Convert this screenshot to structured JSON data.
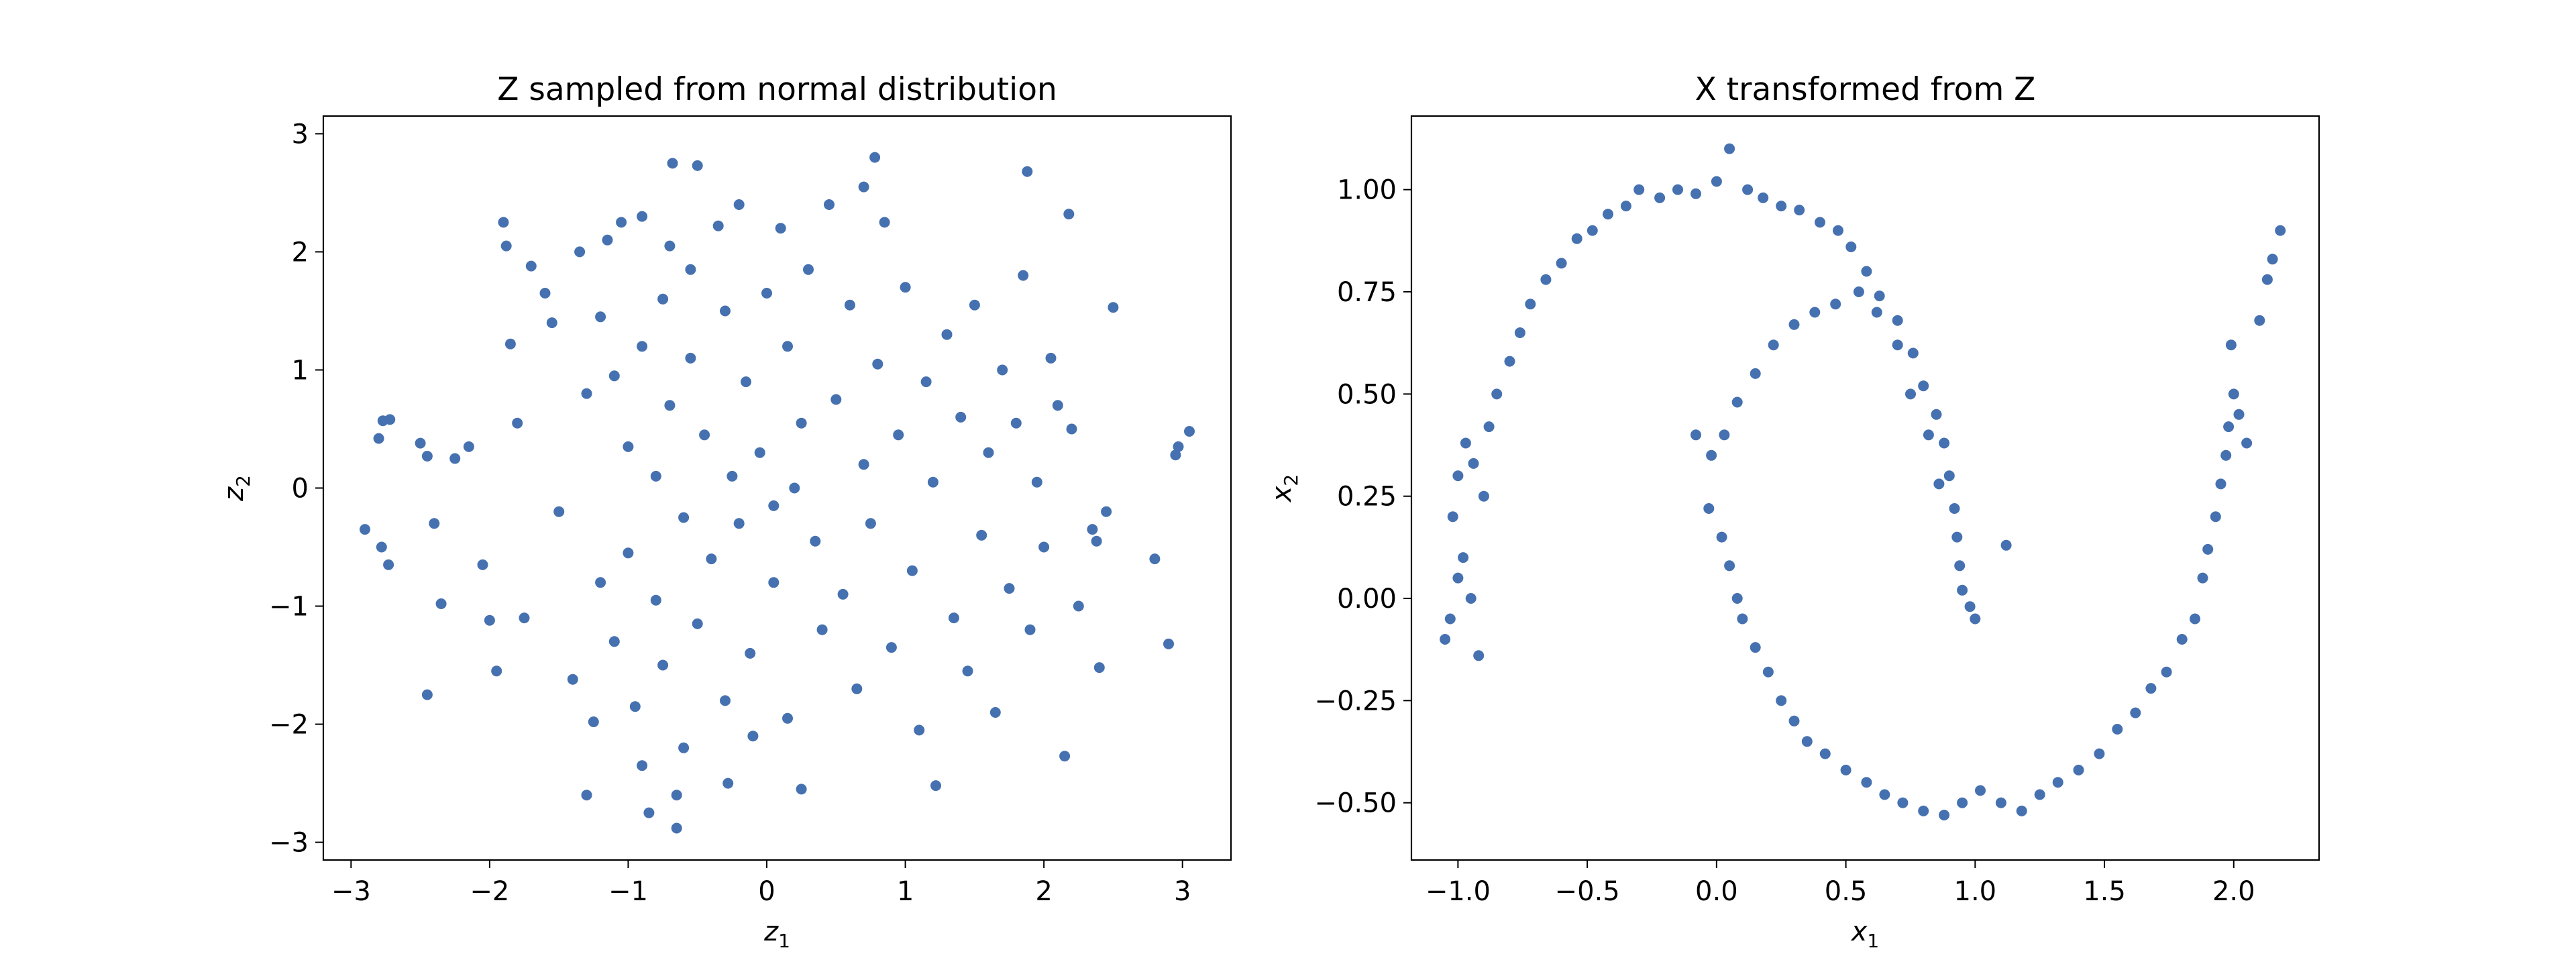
{
  "chart_data": [
    {
      "type": "scatter",
      "title": "Z sampled from normal distribution",
      "xlabel": "z",
      "xlabel_sub": "1",
      "ylabel": "z",
      "ylabel_sub": "2",
      "xlim": [
        -3.2,
        3.35
      ],
      "ylim": [
        -3.15,
        3.15
      ],
      "xticks": [
        {
          "value": -3,
          "label": "−3"
        },
        {
          "value": -2,
          "label": "−2"
        },
        {
          "value": -1,
          "label": "−1"
        },
        {
          "value": 0,
          "label": "0"
        },
        {
          "value": 1,
          "label": "1"
        },
        {
          "value": 2,
          "label": "2"
        },
        {
          "value": 3,
          "label": "3"
        }
      ],
      "yticks": [
        {
          "value": -3,
          "label": "−3"
        },
        {
          "value": -2,
          "label": "−2"
        },
        {
          "value": -1,
          "label": "−1"
        },
        {
          "value": 0,
          "label": "0"
        },
        {
          "value": 1,
          "label": "1"
        },
        {
          "value": 2,
          "label": "2"
        },
        {
          "value": 3,
          "label": "3"
        }
      ],
      "grid": false,
      "color": "#4671b0",
      "points": [
        [
          -2.9,
          -0.35
        ],
        [
          -2.8,
          0.42
        ],
        [
          -2.77,
          0.57
        ],
        [
          -2.72,
          0.58
        ],
        [
          -2.78,
          -0.5
        ],
        [
          -2.73,
          -0.65
        ],
        [
          -2.5,
          0.38
        ],
        [
          -2.45,
          0.27
        ],
        [
          -2.4,
          -0.3
        ],
        [
          -2.35,
          -0.98
        ],
        [
          -2.45,
          -1.75
        ],
        [
          -2.25,
          0.25
        ],
        [
          -2.15,
          0.35
        ],
        [
          -2.05,
          -0.65
        ],
        [
          -2.0,
          -1.12
        ],
        [
          -1.95,
          -1.55
        ],
        [
          -1.9,
          2.25
        ],
        [
          -1.88,
          2.05
        ],
        [
          -1.85,
          1.22
        ],
        [
          -1.8,
          0.55
        ],
        [
          -1.75,
          -1.1
        ],
        [
          -1.7,
          1.88
        ],
        [
          -1.6,
          1.65
        ],
        [
          -1.55,
          1.4
        ],
        [
          -1.5,
          -0.2
        ],
        [
          -1.4,
          -1.62
        ],
        [
          -1.35,
          2.0
        ],
        [
          -1.3,
          0.8
        ],
        [
          -1.3,
          -2.6
        ],
        [
          -1.25,
          -1.98
        ],
        [
          -1.2,
          1.45
        ],
        [
          -1.2,
          -0.8
        ],
        [
          -1.15,
          2.1
        ],
        [
          -1.1,
          0.95
        ],
        [
          -1.1,
          -1.3
        ],
        [
          -1.05,
          2.25
        ],
        [
          -1.0,
          0.35
        ],
        [
          -1.0,
          -0.55
        ],
        [
          -0.95,
          -1.85
        ],
        [
          -0.9,
          2.3
        ],
        [
          -0.9,
          1.2
        ],
        [
          -0.9,
          -2.35
        ],
        [
          -0.85,
          -2.75
        ],
        [
          -0.8,
          0.1
        ],
        [
          -0.8,
          -0.95
        ],
        [
          -0.75,
          1.6
        ],
        [
          -0.75,
          -1.5
        ],
        [
          -0.7,
          2.05
        ],
        [
          -0.7,
          0.7
        ],
        [
          -0.68,
          2.75
        ],
        [
          -0.65,
          -2.6
        ],
        [
          -0.65,
          -2.88
        ],
        [
          -0.6,
          -0.25
        ],
        [
          -0.6,
          -2.2
        ],
        [
          -0.55,
          1.85
        ],
        [
          -0.55,
          1.1
        ],
        [
          -0.5,
          -1.15
        ],
        [
          -0.5,
          2.73
        ],
        [
          -0.45,
          0.45
        ],
        [
          -0.4,
          -0.6
        ],
        [
          -0.35,
          2.22
        ],
        [
          -0.3,
          1.5
        ],
        [
          -0.3,
          -1.8
        ],
        [
          -0.28,
          -2.5
        ],
        [
          -0.25,
          0.1
        ],
        [
          -0.2,
          -0.3
        ],
        [
          -0.2,
          2.4
        ],
        [
          -0.15,
          0.9
        ],
        [
          -0.12,
          -1.4
        ],
        [
          -0.1,
          -2.1
        ],
        [
          -0.05,
          0.3
        ],
        [
          0.0,
          1.65
        ],
        [
          0.05,
          -0.15
        ],
        [
          0.05,
          -0.8
        ],
        [
          0.1,
          2.2
        ],
        [
          0.15,
          1.2
        ],
        [
          0.15,
          -1.95
        ],
        [
          0.2,
          0.0
        ],
        [
          0.25,
          0.55
        ],
        [
          0.25,
          -2.55
        ],
        [
          0.3,
          1.85
        ],
        [
          0.35,
          -0.45
        ],
        [
          0.4,
          -1.2
        ],
        [
          0.45,
          2.4
        ],
        [
          0.5,
          0.75
        ],
        [
          0.55,
          -0.9
        ],
        [
          0.6,
          1.55
        ],
        [
          0.65,
          -1.7
        ],
        [
          0.7,
          0.2
        ],
        [
          0.7,
          2.55
        ],
        [
          0.75,
          -0.3
        ],
        [
          0.78,
          2.8
        ],
        [
          0.8,
          1.05
        ],
        [
          0.85,
          2.25
        ],
        [
          0.9,
          -1.35
        ],
        [
          0.95,
          0.45
        ],
        [
          1.0,
          1.7
        ],
        [
          1.05,
          -0.7
        ],
        [
          1.1,
          -2.05
        ],
        [
          1.15,
          0.9
        ],
        [
          1.2,
          0.05
        ],
        [
          1.22,
          -2.52
        ],
        [
          1.3,
          1.3
        ],
        [
          1.35,
          -1.1
        ],
        [
          1.4,
          0.6
        ],
        [
          1.45,
          -1.55
        ],
        [
          1.5,
          1.55
        ],
        [
          1.55,
          -0.4
        ],
        [
          1.6,
          0.3
        ],
        [
          1.65,
          -1.9
        ],
        [
          1.7,
          1.0
        ],
        [
          1.75,
          -0.85
        ],
        [
          1.8,
          0.55
        ],
        [
          1.85,
          1.8
        ],
        [
          1.88,
          2.68
        ],
        [
          1.9,
          -1.2
        ],
        [
          1.95,
          0.05
        ],
        [
          2.0,
          -0.5
        ],
        [
          2.05,
          1.1
        ],
        [
          2.1,
          0.7
        ],
        [
          2.15,
          -2.27
        ],
        [
          2.18,
          2.32
        ],
        [
          2.2,
          0.5
        ],
        [
          2.25,
          -1.0
        ],
        [
          2.35,
          -0.35
        ],
        [
          2.38,
          -0.45
        ],
        [
          2.45,
          -0.2
        ],
        [
          2.5,
          1.53
        ],
        [
          2.4,
          -1.52
        ],
        [
          2.8,
          -0.6
        ],
        [
          2.9,
          -1.32
        ],
        [
          2.95,
          0.28
        ],
        [
          2.97,
          0.35
        ],
        [
          3.05,
          0.48
        ]
      ]
    },
    {
      "type": "scatter",
      "title": "X transformed from Z",
      "xlabel": "x",
      "xlabel_sub": "1",
      "ylabel": "x",
      "ylabel_sub": "2",
      "xlim": [
        -1.18,
        2.33
      ],
      "ylim": [
        -0.64,
        1.18
      ],
      "xticks": [
        {
          "value": -1.0,
          "label": "−1.0"
        },
        {
          "value": -0.5,
          "label": "−0.5"
        },
        {
          "value": 0.0,
          "label": "0.0"
        },
        {
          "value": 0.5,
          "label": "0.5"
        },
        {
          "value": 1.0,
          "label": "1.0"
        },
        {
          "value": 1.5,
          "label": "1.5"
        },
        {
          "value": 2.0,
          "label": "2.0"
        }
      ],
      "yticks": [
        {
          "value": -0.5,
          "label": "−0.50"
        },
        {
          "value": -0.25,
          "label": "−0.25"
        },
        {
          "value": 0.0,
          "label": "0.00"
        },
        {
          "value": 0.25,
          "label": "0.25"
        },
        {
          "value": 0.5,
          "label": "0.50"
        },
        {
          "value": 0.75,
          "label": "0.75"
        },
        {
          "value": 1.0,
          "label": "1.00"
        }
      ],
      "grid": false,
      "color": "#4671b0",
      "points": [
        [
          -1.05,
          -0.1
        ],
        [
          -1.03,
          -0.05
        ],
        [
          -1.0,
          0.05
        ],
        [
          -0.98,
          0.1
        ],
        [
          -0.95,
          0.0
        ],
        [
          -0.92,
          -0.14
        ],
        [
          -1.02,
          0.2
        ],
        [
          -1.0,
          0.3
        ],
        [
          -0.97,
          0.38
        ],
        [
          -0.94,
          0.33
        ],
        [
          -0.9,
          0.25
        ],
        [
          -0.88,
          0.42
        ],
        [
          -0.85,
          0.5
        ],
        [
          -0.8,
          0.58
        ],
        [
          -0.76,
          0.65
        ],
        [
          -0.72,
          0.72
        ],
        [
          -0.66,
          0.78
        ],
        [
          -0.6,
          0.82
        ],
        [
          -0.54,
          0.88
        ],
        [
          -0.48,
          0.9
        ],
        [
          -0.42,
          0.94
        ],
        [
          -0.35,
          0.96
        ],
        [
          -0.3,
          1.0
        ],
        [
          -0.22,
          0.98
        ],
        [
          -0.15,
          1.0
        ],
        [
          -0.08,
          0.99
        ],
        [
          0.0,
          1.02
        ],
        [
          0.05,
          1.1
        ],
        [
          0.12,
          1.0
        ],
        [
          0.18,
          0.98
        ],
        [
          0.25,
          0.96
        ],
        [
          0.32,
          0.95
        ],
        [
          0.4,
          0.92
        ],
        [
          0.47,
          0.9
        ],
        [
          0.52,
          0.86
        ],
        [
          0.58,
          0.8
        ],
        [
          0.63,
          0.74
        ],
        [
          0.7,
          0.68
        ],
        [
          0.76,
          0.6
        ],
        [
          0.8,
          0.52
        ],
        [
          0.85,
          0.45
        ],
        [
          0.88,
          0.38
        ],
        [
          0.9,
          0.3
        ],
        [
          0.92,
          0.22
        ],
        [
          0.93,
          0.15
        ],
        [
          0.94,
          0.08
        ],
        [
          0.95,
          0.02
        ],
        [
          0.98,
          -0.02
        ],
        [
          1.0,
          -0.05
        ],
        [
          1.12,
          0.13
        ],
        [
          0.86,
          0.28
        ],
        [
          0.82,
          0.4
        ],
        [
          0.75,
          0.5
        ],
        [
          0.7,
          0.62
        ],
        [
          0.62,
          0.7
        ],
        [
          0.55,
          0.75
        ],
        [
          0.46,
          0.72
        ],
        [
          0.38,
          0.7
        ],
        [
          0.3,
          0.67
        ],
        [
          0.22,
          0.62
        ],
        [
          0.15,
          0.55
        ],
        [
          0.08,
          0.48
        ],
        [
          0.03,
          0.4
        ],
        [
          -0.02,
          0.35
        ],
        [
          -0.08,
          0.4
        ],
        [
          -0.03,
          0.22
        ],
        [
          0.02,
          0.15
        ],
        [
          0.05,
          0.08
        ],
        [
          0.08,
          0.0
        ],
        [
          0.1,
          -0.05
        ],
        [
          0.15,
          -0.12
        ],
        [
          0.2,
          -0.18
        ],
        [
          0.25,
          -0.25
        ],
        [
          0.3,
          -0.3
        ],
        [
          0.35,
          -0.35
        ],
        [
          0.42,
          -0.38
        ],
        [
          0.5,
          -0.42
        ],
        [
          0.58,
          -0.45
        ],
        [
          0.65,
          -0.48
        ],
        [
          0.72,
          -0.5
        ],
        [
          0.8,
          -0.52
        ],
        [
          0.88,
          -0.53
        ],
        [
          0.95,
          -0.5
        ],
        [
          1.02,
          -0.47
        ],
        [
          1.1,
          -0.5
        ],
        [
          1.18,
          -0.52
        ],
        [
          1.25,
          -0.48
        ],
        [
          1.32,
          -0.45
        ],
        [
          1.4,
          -0.42
        ],
        [
          1.48,
          -0.38
        ],
        [
          1.55,
          -0.32
        ],
        [
          1.62,
          -0.28
        ],
        [
          1.68,
          -0.22
        ],
        [
          1.74,
          -0.18
        ],
        [
          1.8,
          -0.1
        ],
        [
          1.85,
          -0.05
        ],
        [
          1.88,
          0.05
        ],
        [
          1.9,
          0.12
        ],
        [
          1.93,
          0.2
        ],
        [
          1.95,
          0.28
        ],
        [
          1.97,
          0.35
        ],
        [
          1.98,
          0.42
        ],
        [
          2.0,
          0.5
        ],
        [
          2.02,
          0.45
        ],
        [
          2.05,
          0.38
        ],
        [
          1.99,
          0.62
        ],
        [
          2.1,
          0.68
        ],
        [
          2.13,
          0.78
        ],
        [
          2.15,
          0.83
        ],
        [
          2.18,
          0.9
        ]
      ]
    }
  ]
}
